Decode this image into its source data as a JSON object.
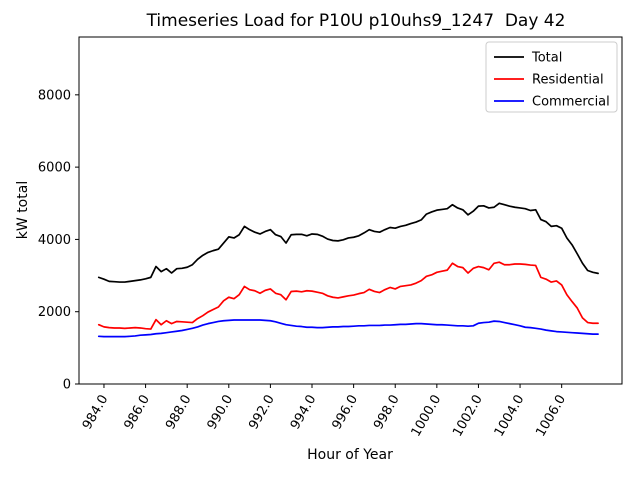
{
  "title": "Timeseries Load for P10U p10uhs9_1247  Day 42",
  "chart_data": {
    "type": "line",
    "title": "Timeseries Load for P10U p10uhs9_1247  Day 42",
    "xlabel": "Hour of Year",
    "ylabel": "kW total",
    "xlim": [
      982.8,
      1008.9
    ],
    "ylim": [
      0,
      9600
    ],
    "grid": false,
    "legend_position": "upper right",
    "xticks": [
      984,
      986,
      988,
      990,
      992,
      994,
      996,
      998,
      1000,
      1002,
      1004,
      1006
    ],
    "xtick_labels": [
      "984.0",
      "986.0",
      "988.0",
      "990.0",
      "992.0",
      "994.0",
      "996.0",
      "998.0",
      "1000.0",
      "1002.0",
      "1004.0",
      "1006.0"
    ],
    "yticks": [
      0,
      2000,
      4000,
      6000,
      8000
    ],
    "ytick_labels": [
      "0",
      "2000",
      "4000",
      "6000",
      "8000"
    ],
    "x": [
      983.75,
      984.0,
      984.25,
      984.5,
      984.75,
      985.0,
      985.25,
      985.5,
      985.75,
      986.0,
      986.25,
      986.5,
      986.75,
      987.0,
      987.25,
      987.5,
      987.75,
      988.0,
      988.25,
      988.5,
      988.75,
      989.0,
      989.25,
      989.5,
      989.75,
      990.0,
      990.25,
      990.5,
      990.75,
      991.0,
      991.25,
      991.5,
      991.75,
      992.0,
      992.25,
      992.5,
      992.75,
      993.0,
      993.25,
      993.5,
      993.75,
      994.0,
      994.25,
      994.5,
      994.75,
      995.0,
      995.25,
      995.5,
      995.75,
      996.0,
      996.25,
      996.5,
      996.75,
      997.0,
      997.25,
      997.5,
      997.75,
      998.0,
      998.25,
      998.5,
      998.75,
      999.0,
      999.25,
      999.5,
      999.75,
      1000.0,
      1000.25,
      1000.5,
      1000.75,
      1001.0,
      1001.25,
      1001.5,
      1001.75,
      1002.0,
      1002.25,
      1002.5,
      1002.75,
      1003.0,
      1003.25,
      1003.5,
      1003.75,
      1004.0,
      1004.25,
      1004.5,
      1004.75,
      1005.0,
      1005.25,
      1005.5,
      1005.75,
      1006.0,
      1006.25,
      1006.5,
      1006.75,
      1007.0,
      1007.25,
      1007.5,
      1007.75
    ],
    "series": [
      {
        "name": "Total",
        "color": "#000000",
        "values": [
          2950,
          2900,
          2840,
          2830,
          2820,
          2820,
          2840,
          2860,
          2880,
          2910,
          2950,
          3250,
          3110,
          3190,
          3070,
          3190,
          3200,
          3230,
          3300,
          3450,
          3560,
          3640,
          3690,
          3730,
          3900,
          4070,
          4040,
          4130,
          4360,
          4270,
          4200,
          4150,
          4220,
          4270,
          4130,
          4080,
          3900,
          4130,
          4140,
          4140,
          4100,
          4150,
          4140,
          4090,
          4010,
          3970,
          3960,
          3990,
          4040,
          4060,
          4100,
          4180,
          4270,
          4220,
          4200,
          4270,
          4330,
          4310,
          4360,
          4390,
          4440,
          4480,
          4540,
          4700,
          4760,
          4810,
          4830,
          4850,
          4960,
          4870,
          4820,
          4680,
          4780,
          4920,
          4930,
          4870,
          4890,
          5000,
          4960,
          4920,
          4890,
          4870,
          4850,
          4800,
          4820,
          4550,
          4490,
          4360,
          4380,
          4310,
          4040,
          3850,
          3600,
          3340,
          3140,
          3090,
          3060
        ]
      },
      {
        "name": "Residential",
        "color": "#ff0000",
        "values": [
          1640,
          1580,
          1560,
          1550,
          1550,
          1540,
          1550,
          1560,
          1550,
          1530,
          1520,
          1780,
          1640,
          1750,
          1670,
          1730,
          1720,
          1710,
          1700,
          1810,
          1890,
          1990,
          2060,
          2130,
          2300,
          2400,
          2360,
          2470,
          2700,
          2610,
          2580,
          2510,
          2590,
          2630,
          2510,
          2470,
          2330,
          2560,
          2570,
          2550,
          2580,
          2570,
          2540,
          2510,
          2440,
          2400,
          2380,
          2410,
          2440,
          2460,
          2500,
          2530,
          2620,
          2560,
          2530,
          2610,
          2670,
          2630,
          2700,
          2720,
          2740,
          2790,
          2860,
          2980,
          3020,
          3090,
          3120,
          3150,
          3340,
          3250,
          3220,
          3070,
          3200,
          3250,
          3220,
          3160,
          3340,
          3370,
          3300,
          3300,
          3320,
          3320,
          3310,
          3290,
          3280,
          2950,
          2900,
          2820,
          2850,
          2740,
          2470,
          2280,
          2100,
          1830,
          1700,
          1680,
          1680
        ]
      },
      {
        "name": "Commercial",
        "color": "#0000ff",
        "values": [
          1320,
          1310,
          1310,
          1310,
          1310,
          1310,
          1320,
          1330,
          1350,
          1360,
          1370,
          1390,
          1400,
          1420,
          1440,
          1460,
          1480,
          1510,
          1540,
          1580,
          1630,
          1670,
          1700,
          1730,
          1750,
          1760,
          1770,
          1770,
          1770,
          1770,
          1770,
          1770,
          1760,
          1750,
          1720,
          1680,
          1640,
          1620,
          1600,
          1590,
          1570,
          1570,
          1560,
          1560,
          1570,
          1580,
          1580,
          1590,
          1590,
          1600,
          1610,
          1610,
          1620,
          1620,
          1620,
          1630,
          1630,
          1640,
          1650,
          1650,
          1660,
          1670,
          1670,
          1660,
          1650,
          1640,
          1640,
          1630,
          1620,
          1610,
          1610,
          1600,
          1610,
          1680,
          1700,
          1710,
          1740,
          1730,
          1700,
          1670,
          1640,
          1610,
          1570,
          1560,
          1540,
          1520,
          1490,
          1470,
          1450,
          1440,
          1430,
          1420,
          1410,
          1400,
          1390,
          1380,
          1380
        ]
      }
    ]
  },
  "legend": {
    "entries": [
      {
        "label": "Total",
        "color": "#000000"
      },
      {
        "label": "Residential",
        "color": "#ff0000"
      },
      {
        "label": "Commercial",
        "color": "#0000ff"
      }
    ]
  }
}
